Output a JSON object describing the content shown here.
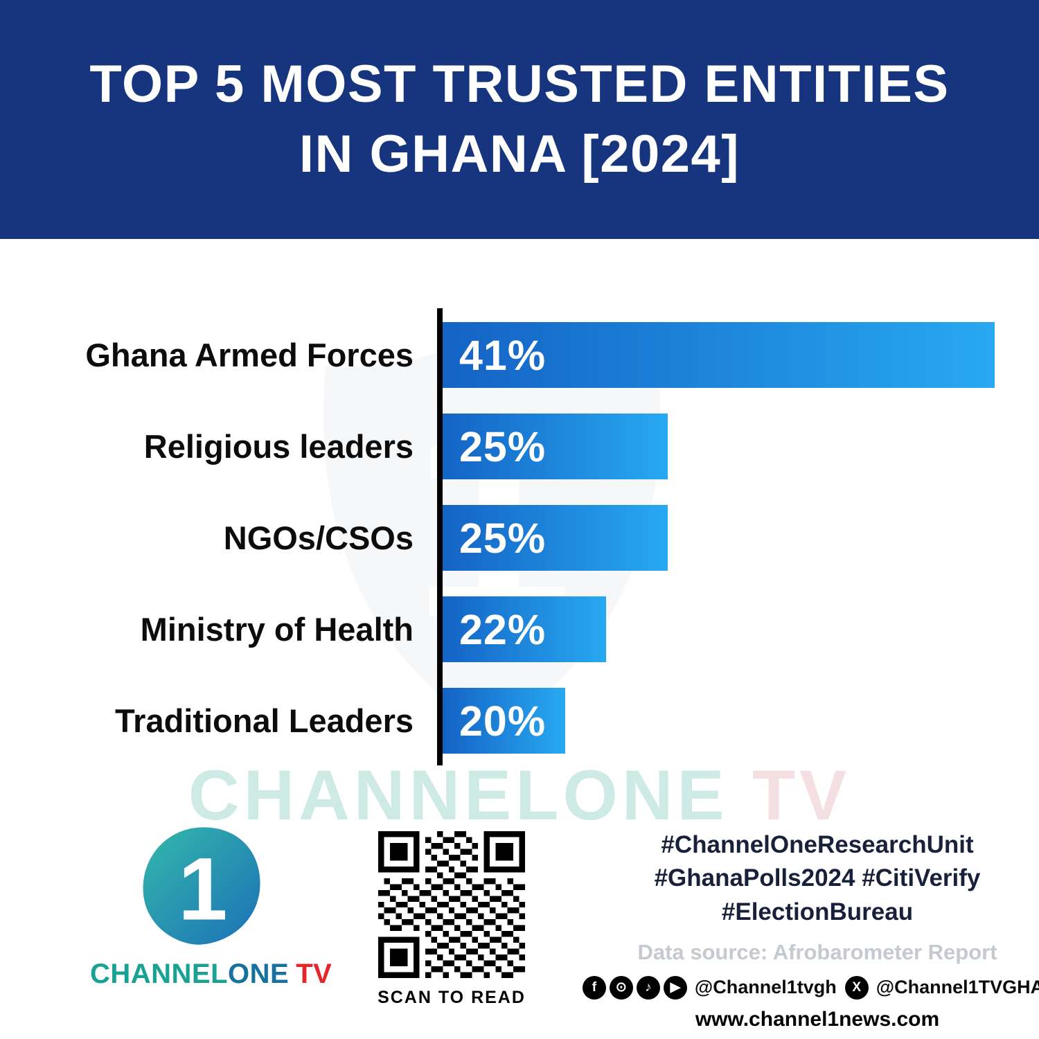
{
  "header": {
    "title_line1": "TOP 5 MOST TRUSTED ENTITIES",
    "title_line2": "IN GHANA [2024]"
  },
  "chart_data": {
    "type": "bar",
    "orientation": "horizontal",
    "title": "Top 5 Most Trusted Entities in Ghana [2024]",
    "categories": [
      "Ghana Armed Forces",
      "Religious leaders",
      "NGOs/CSOs",
      "Ministry of Health",
      "Traditional Leaders"
    ],
    "values": [
      41,
      25,
      25,
      22,
      20
    ],
    "value_labels": [
      "41%",
      "25%",
      "25%",
      "22%",
      "20%"
    ],
    "unit": "%",
    "bar_gradient": [
      "#1463c5",
      "#27a9f1"
    ],
    "axis_color": "#000000",
    "legend": false
  },
  "watermark": {
    "part1": "CHANNELONE",
    "part2": " TV"
  },
  "footer": {
    "logo": {
      "numeral": "1",
      "part1": "CHANNEL",
      "part2": "ONE",
      "part3": "TV"
    },
    "qr_caption": "SCAN TO READ",
    "hashtags": [
      "#ChannelOneResearchUnit",
      "#GhanaPolls2024 #CitiVerify",
      "#ElectionBureau"
    ],
    "data_source": "Data source: Afrobarometer Report",
    "icons": {
      "facebook": "f",
      "instagram": "⊙",
      "tiktok": "♪",
      "youtube": "▶",
      "x": "X"
    },
    "social_handle_1": "@Channel1tvgh",
    "social_handle_2": "@Channel1TVGHA",
    "website": "www.channel1news.com"
  },
  "colors": {
    "header_bg": "#16357e",
    "accent_teal": "#17a292",
    "accent_red": "#e4262b"
  }
}
